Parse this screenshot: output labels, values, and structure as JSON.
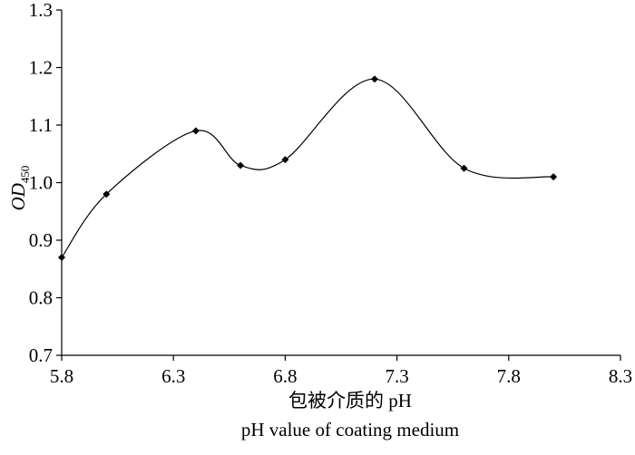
{
  "chart_data": {
    "type": "line",
    "smooth": true,
    "title": "",
    "xlabel_lines": [
      "包被介质的 pH",
      "pH value of coating medium"
    ],
    "ylabel": {
      "main": "OD",
      "subscript": "450"
    },
    "xlim": [
      5.8,
      8.3
    ],
    "ylim": [
      0.7,
      1.3
    ],
    "xticks": [
      5.8,
      6.3,
      6.8,
      7.3,
      7.8,
      8.3
    ],
    "xtick_labels": [
      "5.8",
      "6.3",
      "6.8",
      "7.3",
      "7.8",
      "8.3"
    ],
    "yticks": [
      0.7,
      0.8,
      0.9,
      1.0,
      1.1,
      1.2,
      1.3
    ],
    "ytick_labels": [
      "0.7",
      "0.8",
      "0.9",
      "1.0",
      "1.1",
      "1.2",
      "1.3"
    ],
    "grid": false,
    "legend": "none",
    "series": [
      {
        "name": "OD450",
        "marker": "diamond",
        "color": "#000000",
        "x": [
          5.8,
          6.0,
          6.4,
          6.6,
          6.8,
          7.2,
          7.6,
          8.0
        ],
        "y": [
          0.87,
          0.98,
          1.09,
          1.03,
          1.04,
          1.18,
          1.025,
          1.01
        ]
      }
    ]
  }
}
